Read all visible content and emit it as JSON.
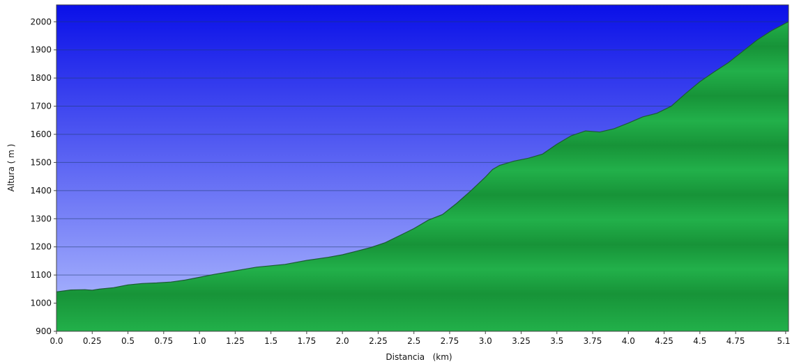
{
  "chart_data": {
    "type": "area",
    "title": "",
    "xlabel": "Distancia   (km)",
    "ylabel": "Altura ( m )",
    "xlim": [
      0,
      5.12
    ],
    "ylim": [
      900,
      2060
    ],
    "x_ticks": [
      "0.0",
      "0.25",
      "0.5",
      "0.75",
      "1.0",
      "1.25",
      "1.5",
      "1.75",
      "2.0",
      "2.25",
      "2.5",
      "2.75",
      "3.0",
      "3.25",
      "3.5",
      "3.75",
      "4.0",
      "4.25",
      "4.5",
      "4.75",
      "5.1"
    ],
    "y_ticks": [
      "900",
      "1000",
      "1100",
      "1200",
      "1300",
      "1400",
      "1500",
      "1600",
      "1700",
      "1800",
      "1900",
      "2000"
    ],
    "grid": true,
    "colors": {
      "sky_top": "#0a10e8",
      "sky_bottom": "#b4c0ff",
      "fill_light": "#22b04a",
      "fill_dark": "#137a30",
      "line": "#1d5a34",
      "grid": "#1e3a6e"
    },
    "x": [
      0.0,
      0.1,
      0.2,
      0.25,
      0.3,
      0.4,
      0.5,
      0.6,
      0.7,
      0.8,
      0.9,
      1.0,
      1.1,
      1.25,
      1.4,
      1.5,
      1.6,
      1.75,
      1.9,
      2.0,
      2.1,
      2.2,
      2.3,
      2.4,
      2.5,
      2.6,
      2.7,
      2.8,
      2.9,
      3.0,
      3.05,
      3.1,
      3.2,
      3.3,
      3.4,
      3.5,
      3.6,
      3.7,
      3.8,
      3.9,
      4.0,
      4.1,
      4.2,
      4.3,
      4.4,
      4.5,
      4.6,
      4.7,
      4.8,
      4.9,
      5.0,
      5.1,
      5.12
    ],
    "y": [
      1040,
      1047,
      1048,
      1046,
      1050,
      1055,
      1065,
      1070,
      1072,
      1075,
      1082,
      1092,
      1102,
      1115,
      1128,
      1133,
      1138,
      1152,
      1163,
      1172,
      1185,
      1198,
      1215,
      1240,
      1265,
      1295,
      1315,
      1355,
      1400,
      1448,
      1475,
      1490,
      1505,
      1515,
      1530,
      1565,
      1595,
      1612,
      1608,
      1620,
      1640,
      1662,
      1675,
      1700,
      1745,
      1787,
      1822,
      1855,
      1895,
      1935,
      1968,
      1995,
      2000
    ]
  }
}
